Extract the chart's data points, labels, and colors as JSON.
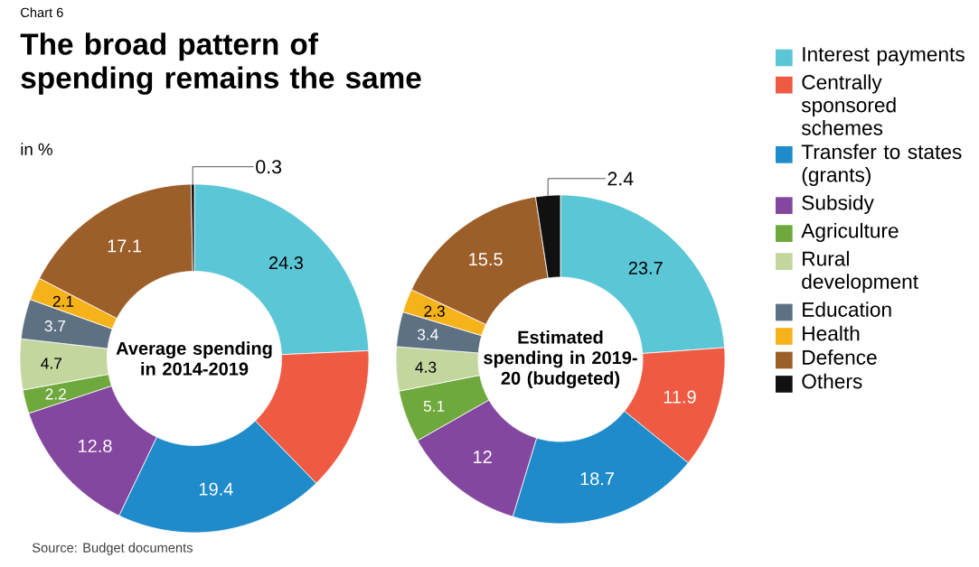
{
  "chart_data": [
    {
      "type": "donut",
      "title": "The broad pattern of spending remains the same",
      "subtitle": "in %",
      "annotations": [
        "Average spending in 2014-2019",
        "Chart 6",
        "Source: Budget documents"
      ],
      "categories": [
        null,
        null,
        null,
        null,
        null,
        null,
        null,
        null,
        null,
        null
      ],
      "values": [
        24.3,
        13.4,
        19.4,
        12.8,
        2.2,
        4.7,
        3.7,
        2.1,
        17.1,
        0.3
      ],
      "value_labels": [
        "24.3",
        null,
        "19.4",
        "12.8",
        "2.2",
        "4.7",
        "3.7",
        "2.1",
        "17.1",
        "0.3"
      ],
      "colors": [
        "#5bc6d6",
        "#ef5a42",
        "#1f8bcb",
        "#8447a0",
        "#6fa83c",
        "#c3d69e",
        "#5d7183",
        "#f6b21b",
        "#9c5f2a",
        "#111111"
      ]
    },
    {
      "type": "donut",
      "legend": "right",
      "annotations": [
        "Estimated spending in 2019-20 (budgeted)"
      ],
      "categories": [
        "Interest payments",
        "Centrally sponsored schemes",
        "Transfer to states (grants)",
        "Subsidy",
        "Agriculture",
        "Rural development",
        "Education",
        "Health",
        "Defence",
        "Others"
      ],
      "values": [
        23.7,
        11.9,
        18.7,
        12,
        5.1,
        4.3,
        3.4,
        2.3,
        15.5,
        2.4
      ],
      "data_labels": true,
      "colors": [
        "#5bc6d6",
        "#ef5a42",
        "#1f8bcb",
        "#8447a0",
        "#6fa83c",
        "#c3d69e",
        "#5d7183",
        "#f6b21b",
        "#9c5f2a",
        "#111111"
      ]
    }
  ]
}
